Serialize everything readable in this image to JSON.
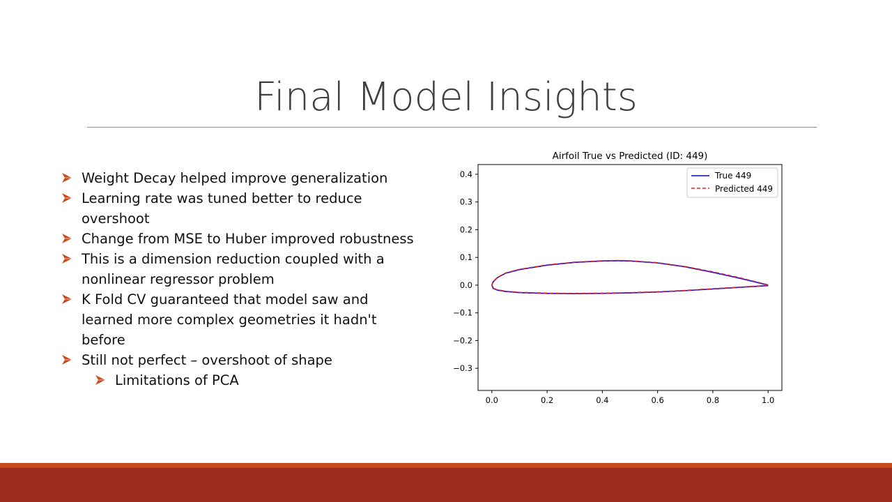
{
  "slide": {
    "title": "Final Model Insights",
    "bullets": [
      {
        "text": "Weight Decay helped improve generalization",
        "level": 1
      },
      {
        "text": "Learning rate was tuned better to reduce overshoot",
        "level": 1
      },
      {
        "text": "Change from MSE to Huber improved robustness",
        "level": 1
      },
      {
        "text": "This is a dimension reduction coupled with a nonlinear regressor problem",
        "level": 1
      },
      {
        "text": "K Fold CV guaranteed that model saw and learned more complex geometries it hadn't before",
        "level": 1
      },
      {
        "text": "Still not perfect – overshoot of shape",
        "level": 1
      },
      {
        "text": "Limitations of PCA",
        "level": 2
      }
    ]
  },
  "colors": {
    "accent": "#c84b1c",
    "footer": "#9c2b1c",
    "true_series": "#0000ff",
    "predicted_series": "#d62728"
  },
  "chart_data": {
    "type": "line",
    "title": "Airfoil True vs Predicted (ID: 449)",
    "xlabel": "",
    "ylabel": "",
    "xlim": [
      -0.05,
      1.05
    ],
    "ylim": [
      -0.38,
      0.435
    ],
    "xticks": [
      0.0,
      0.2,
      0.4,
      0.6,
      0.8,
      1.0
    ],
    "xtick_labels": [
      "0.0",
      "0.2",
      "0.4",
      "0.6",
      "0.8",
      "1.0"
    ],
    "yticks": [
      -0.3,
      -0.2,
      -0.1,
      0.0,
      0.1,
      0.2,
      0.3,
      0.4
    ],
    "ytick_labels": [
      "−0.3",
      "−0.2",
      "−0.1",
      "0.0",
      "0.1",
      "0.2",
      "0.3",
      "0.4"
    ],
    "grid": false,
    "legend_position": "top-right",
    "series": [
      {
        "name": "True 449",
        "style": "solid",
        "color": "#0000ff",
        "x": [
          1.0,
          0.9,
          0.8,
          0.7,
          0.6,
          0.5,
          0.45,
          0.4,
          0.3,
          0.2,
          0.1,
          0.05,
          0.02,
          0.005,
          0.0,
          0.005,
          0.02,
          0.05,
          0.1,
          0.2,
          0.3,
          0.4,
          0.5,
          0.6,
          0.7,
          0.8,
          0.9,
          1.0
        ],
        "y": [
          0.0,
          0.024,
          0.046,
          0.066,
          0.08,
          0.087,
          0.088,
          0.087,
          0.082,
          0.072,
          0.056,
          0.043,
          0.027,
          0.012,
          0.0,
          -0.012,
          -0.018,
          -0.023,
          -0.027,
          -0.03,
          -0.031,
          -0.03,
          -0.028,
          -0.025,
          -0.02,
          -0.014,
          -0.008,
          -0.002
        ]
      },
      {
        "name": "Predicted 449",
        "style": "dashed",
        "color": "#d62728",
        "x": [
          1.0,
          0.9,
          0.8,
          0.7,
          0.6,
          0.5,
          0.45,
          0.4,
          0.3,
          0.2,
          0.1,
          0.05,
          0.02,
          0.005,
          0.0,
          0.005,
          0.02,
          0.05,
          0.1,
          0.2,
          0.3,
          0.4,
          0.5,
          0.6,
          0.7,
          0.8,
          0.9,
          1.0
        ],
        "y": [
          0.001,
          0.026,
          0.048,
          0.067,
          0.081,
          0.088,
          0.089,
          0.088,
          0.083,
          0.073,
          0.057,
          0.044,
          0.028,
          0.013,
          0.001,
          -0.011,
          -0.017,
          -0.022,
          -0.026,
          -0.029,
          -0.03,
          -0.029,
          -0.027,
          -0.024,
          -0.019,
          -0.013,
          -0.007,
          -0.001
        ]
      }
    ]
  }
}
